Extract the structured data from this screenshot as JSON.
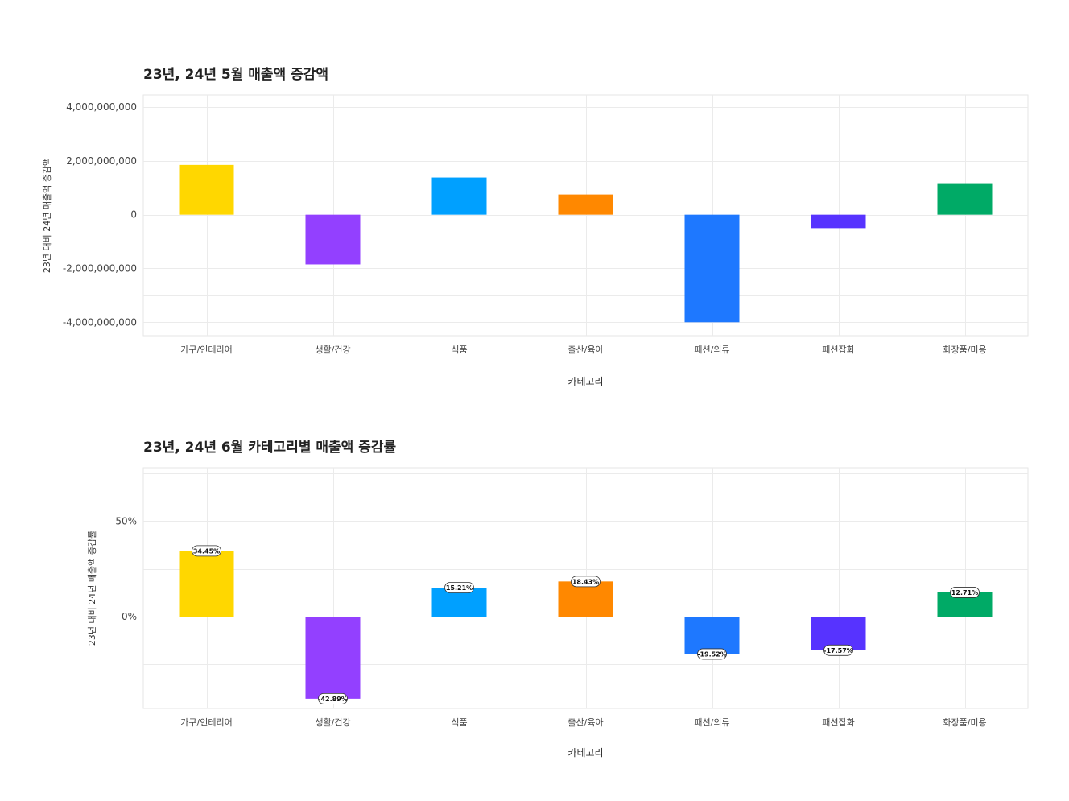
{
  "chart_data": [
    {
      "type": "bar",
      "title": "23년, 24년 5월 매출액 증감액",
      "xlabel": "카테고리",
      "ylabel": "23년 대비 24년 매출액 증감액",
      "categories": [
        "가구/인테리어",
        "생활/건강",
        "식품",
        "출산/육아",
        "패션/의류",
        "패션잡화",
        "화장품/미용"
      ],
      "values": [
        1850000000,
        -1850000000,
        1380000000,
        750000000,
        -4000000000,
        -500000000,
        1170000000
      ],
      "colors": [
        "#FFD700",
        "#9340FF",
        "#00A0FF",
        "#FF8800",
        "#1E78FF",
        "#5733FF",
        "#00AA66"
      ],
      "yticks": [
        4000000000,
        2000000000,
        0,
        -2000000000,
        -4000000000
      ],
      "ytick_labels": [
        "4,000,000,000",
        "2,000,000,000",
        "0",
        "-2,000,000,000",
        "-4,000,000,000"
      ],
      "ylim": [
        -4500000000,
        4450000000
      ],
      "grid": true
    },
    {
      "type": "bar",
      "title": "23년, 24년 6월 카테고리별 매출액 증감률",
      "xlabel": "카테고리",
      "ylabel": "23년 대비 24년 매출액 증감률",
      "categories": [
        "가구/인테리어",
        "생활/건강",
        "식품",
        "출산/육아",
        "패션/의류",
        "패션잡화",
        "화장품/미용"
      ],
      "values": [
        34.45,
        -42.89,
        15.21,
        18.43,
        -19.52,
        -17.57,
        12.71
      ],
      "data_labels": [
        "34.45%",
        "-42.89%",
        "15.21%",
        "18.43%",
        "-19.52%",
        "-17.57%",
        "12.71%"
      ],
      "colors": [
        "#FFD700",
        "#9340FF",
        "#00A0FF",
        "#FF8800",
        "#1E78FF",
        "#5733FF",
        "#00AA66"
      ],
      "yticks": [
        50,
        0
      ],
      "ytick_labels": [
        "50%",
        "0%"
      ],
      "ylim": [
        -48,
        78
      ],
      "grid": true
    }
  ]
}
